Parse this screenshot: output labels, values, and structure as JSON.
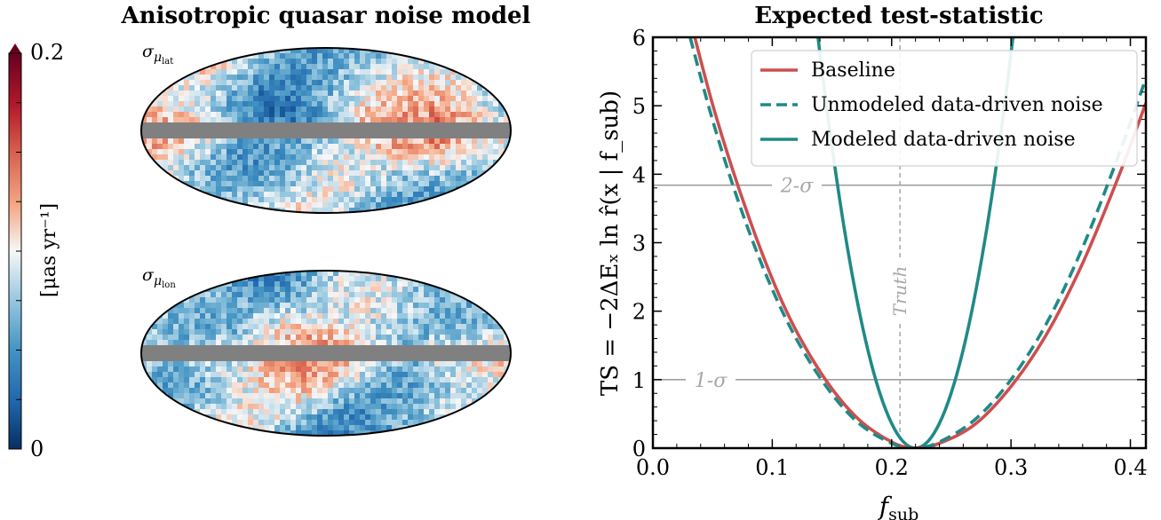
{
  "left_panel": {
    "title": "Anisotropic quasar noise model",
    "colorbar": {
      "max_label": "0.2",
      "min_label": "0",
      "unit_label": "[μas yr⁻¹]",
      "range": [
        0,
        0.2
      ],
      "cmap": "RdBu_r"
    },
    "maps": [
      {
        "label_main": "σ",
        "label_sub": "μ",
        "label_subsub": "lat"
      },
      {
        "label_main": "σ",
        "label_sub": "μ",
        "label_subsub": "lon"
      }
    ],
    "masked_band_color": "#808080"
  },
  "chart_data": {
    "type": "line",
    "title": "Expected test-statistic",
    "xlabel": "f_sub",
    "xlabel_main": "f",
    "xlabel_sub": "sub",
    "ylabel": "TS = −2ΔEₓ ln r̂(x | f_sub)",
    "xlim": [
      0.0,
      0.413
    ],
    "ylim": [
      0,
      6
    ],
    "xticks": [
      "0.0",
      "0.1",
      "0.2",
      "0.3",
      "0.4"
    ],
    "yticks": [
      "0",
      "1",
      "2",
      "3",
      "4",
      "5",
      "6"
    ],
    "legend_position": "top-right",
    "series": [
      {
        "name": "Baseline",
        "color": "#cc4f4f",
        "style": "solid",
        "x": [
          0.02,
          0.05,
          0.08,
          0.11,
          0.14,
          0.17,
          0.2,
          0.22,
          0.24,
          0.27,
          0.3,
          0.33,
          0.36,
          0.39,
          0.413
        ],
        "y": [
          7.04,
          5.02,
          3.39,
          2.07,
          1.12,
          0.46,
          0.09,
          0.0,
          0.07,
          0.35,
          0.9,
          1.67,
          2.7,
          3.96,
          5.04
        ]
      },
      {
        "name": "Unmodeled data-driven noise",
        "color": "#1f8a87",
        "style": "dashed",
        "x": [
          0.02,
          0.05,
          0.08,
          0.11,
          0.14,
          0.17,
          0.2,
          0.22,
          0.24,
          0.27,
          0.3,
          0.33,
          0.36,
          0.39,
          0.413
        ],
        "y": [
          6.75,
          4.79,
          3.19,
          1.94,
          1.03,
          0.4,
          0.07,
          0.0,
          0.09,
          0.42,
          1.0,
          1.83,
          2.93,
          4.27,
          5.4
        ]
      },
      {
        "name": "Modeled data-driven noise",
        "color": "#1f8a87",
        "style": "solid",
        "x": [
          0.12,
          0.14,
          0.16,
          0.18,
          0.2,
          0.22,
          0.24,
          0.26,
          0.28,
          0.3,
          0.32
        ],
        "y": [
          9.0,
          5.76,
          3.24,
          1.44,
          0.36,
          0.0,
          0.36,
          1.44,
          3.24,
          5.76,
          9.0
        ]
      }
    ],
    "reference_lines": [
      {
        "label": "1-σ",
        "y": 1
      },
      {
        "label": "2-σ",
        "y": 3.84
      }
    ],
    "truth_line": {
      "label": "Truth",
      "x": 0.207
    }
  }
}
